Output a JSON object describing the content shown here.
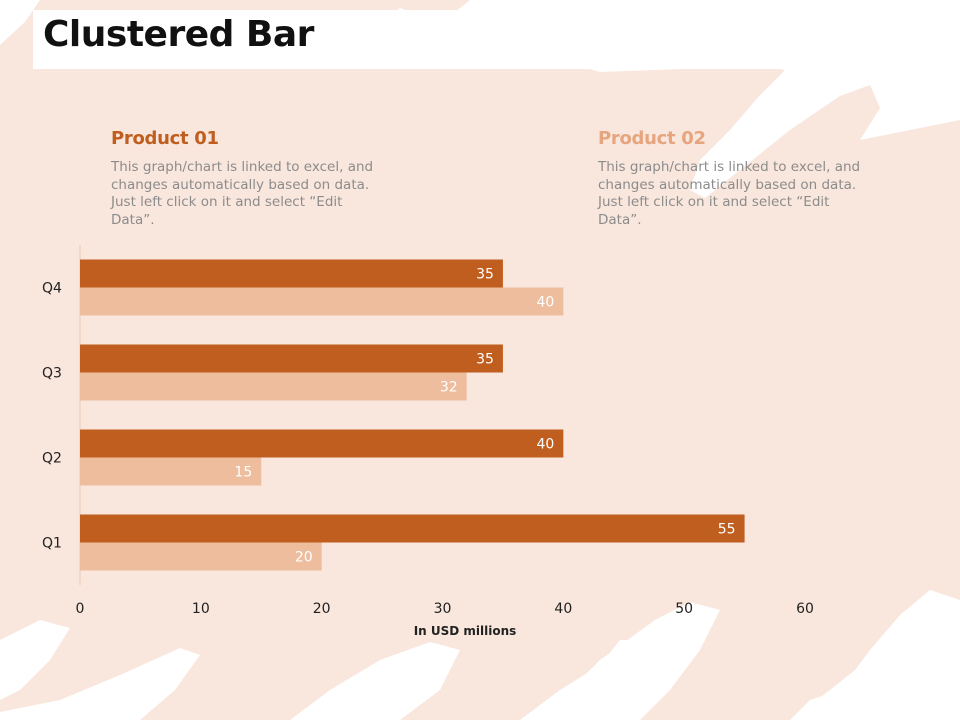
{
  "slide": {
    "title": "Clustered Bar",
    "colors": {
      "background_brush": "#f9e6dd",
      "product_01": "#bf5e1f",
      "product_02": "#edbd9e",
      "product_02_heading": "#e6a57e"
    }
  },
  "legend": [
    {
      "heading": "Product 01",
      "description": "This graph/chart is linked to excel, and changes automatically based on data. Just left click on it and select “Edit Data”."
    },
    {
      "heading": "Product 02",
      "description": "This graph/chart is linked to excel, and changes automatically based on data. Just left click on it and select “Edit Data”."
    }
  ],
  "chart_data": {
    "type": "bar",
    "orientation": "horizontal",
    "categories": [
      "Q1",
      "Q2",
      "Q3",
      "Q4"
    ],
    "series": [
      {
        "name": "Product 01",
        "values": [
          55,
          40,
          35,
          35
        ],
        "color": "#bf5e1f"
      },
      {
        "name": "Product 02",
        "values": [
          20,
          15,
          32,
          40
        ],
        "color": "#edbd9e"
      }
    ],
    "xlabel": "In USD millions",
    "ylabel": "",
    "xlim": [
      0,
      60
    ],
    "xticks": [
      0,
      10,
      20,
      30,
      40,
      50,
      60
    ],
    "grid": false,
    "data_labels": true
  }
}
